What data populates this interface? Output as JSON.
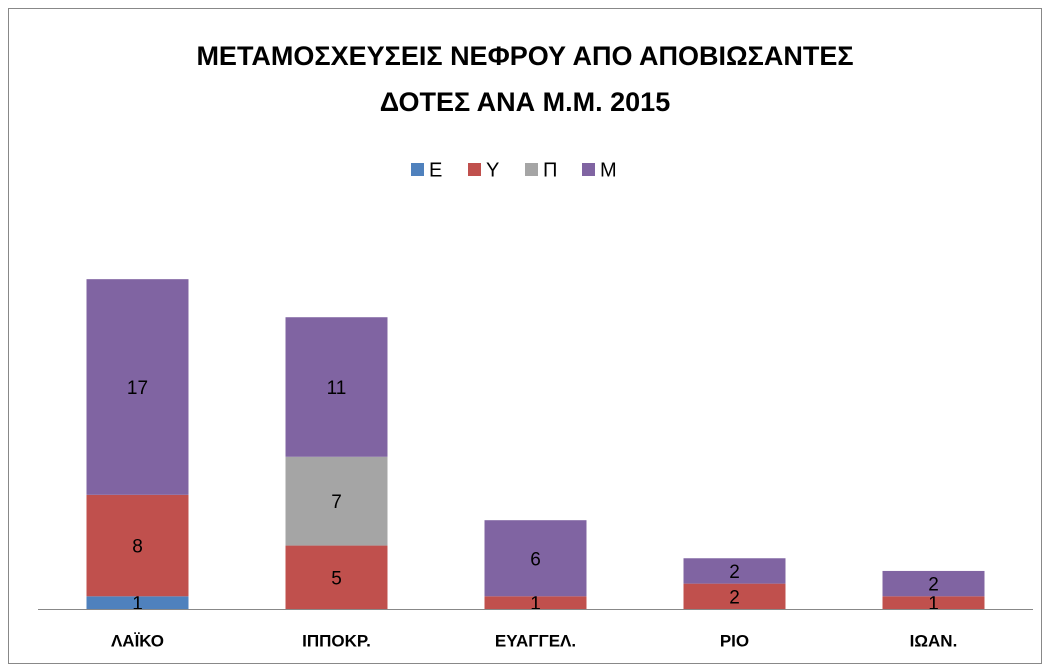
{
  "chart_data": {
    "type": "stacked_bar",
    "title": [
      "ΜΕΤΑΜΟΣΧΕΥΣΕΙΣ ΝΕΦΡΟΥ ΑΠΟ ΑΠΟΒΙΩΣΑΝΤΕΣ",
      "ΔΟΤΕΣ ΑΝΑ Μ.Μ. 2015"
    ],
    "categories": [
      "ΛΑΪΚΟ",
      "ΙΠΠΟΚΡ.",
      "ΕΥΑΓΓΕΛ.",
      "ΡΙΟ",
      "ΙΩΑΝ."
    ],
    "series": [
      {
        "name": "Ε",
        "color": "#4f81bd",
        "values": [
          1,
          null,
          null,
          null,
          null
        ]
      },
      {
        "name": "Υ",
        "color": "#c0504d",
        "values": [
          8,
          5,
          1,
          2,
          1
        ]
      },
      {
        "name": "Π",
        "color": "#a5a5a5",
        "values": [
          null,
          7,
          null,
          null,
          null
        ]
      },
      {
        "name": "Μ",
        "color": "#8064a2",
        "values": [
          17,
          11,
          6,
          2,
          2
        ]
      }
    ],
    "ylim": [
      0,
      35
    ],
    "legend": "top"
  }
}
